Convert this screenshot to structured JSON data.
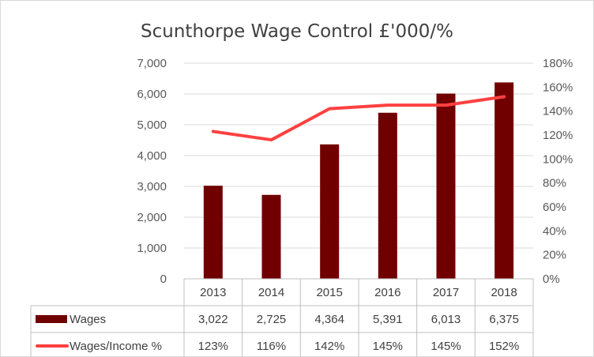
{
  "chart_data": {
    "type": "bar",
    "title": "Scunthorpe Wage Control £'000/%",
    "categories": [
      "2013",
      "2014",
      "2015",
      "2016",
      "2017",
      "2018"
    ],
    "series": [
      {
        "name": "Wages",
        "type": "bar",
        "axis": "left",
        "values": [
          3022,
          2725,
          4364,
          5391,
          6013,
          6375
        ],
        "labels": [
          "3,022",
          "2,725",
          "4,364",
          "5,391",
          "6,013",
          "6,375"
        ],
        "color": "#700000"
      },
      {
        "name": "Wages/Income %",
        "type": "line",
        "axis": "right",
        "values": [
          123,
          116,
          142,
          145,
          145,
          152
        ],
        "labels": [
          "123%",
          "116%",
          "142%",
          "145%",
          "145%",
          "152%"
        ],
        "color": "#ff4040"
      }
    ],
    "y_left": {
      "min": 0,
      "max": 7000,
      "ticks": [
        "0",
        "1,000",
        "2,000",
        "3,000",
        "4,000",
        "5,000",
        "6,000",
        "7,000"
      ]
    },
    "y_right": {
      "min": 0,
      "max": 180,
      "ticks": [
        "0%",
        "20%",
        "40%",
        "60%",
        "80%",
        "100%",
        "120%",
        "140%",
        "160%",
        "180%"
      ]
    },
    "grid": true,
    "legend": "data-table"
  }
}
